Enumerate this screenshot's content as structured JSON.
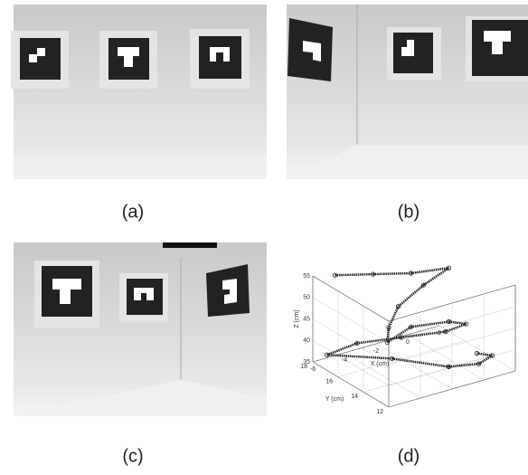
{
  "captions": [
    "(a)",
    "(b)",
    "(c)",
    "(d)"
  ],
  "chart_data": {
    "type": "scatter3d",
    "xlabel": "X (cm)",
    "ylabel": "Y (cm)",
    "zlabel": "Z (cm)",
    "xlim": [
      -6,
      2
    ],
    "ylim": [
      12,
      18
    ],
    "zlim": [
      35,
      55
    ],
    "xticks": [
      -6,
      -4,
      -2,
      0,
      2
    ],
    "yticks": [
      12,
      14,
      16,
      18
    ],
    "zticks": [
      35,
      40,
      45,
      50,
      55
    ],
    "grid": true,
    "series": [
      {
        "color": "#222222",
        "x": [
          -5,
          -3,
          -1,
          1,
          -1,
          -3,
          -4,
          -4.5,
          -3,
          -1,
          0.5,
          0,
          -2,
          -4,
          -5.5,
          -3,
          -1,
          0.5,
          1.5,
          1
        ],
        "y": [
          17.5,
          17,
          16.5,
          16,
          15.5,
          15,
          14.5,
          14,
          14,
          13.5,
          14,
          15,
          16,
          17,
          17.5,
          15.5,
          13.5,
          13,
          13.2,
          13.8
        ],
        "z": [
          55,
          54,
          53,
          53,
          52,
          50,
          47,
          45,
          47,
          47,
          44,
          41,
          40,
          39,
          37,
          37,
          36.5,
          36.5,
          37,
          37
        ]
      }
    ]
  }
}
